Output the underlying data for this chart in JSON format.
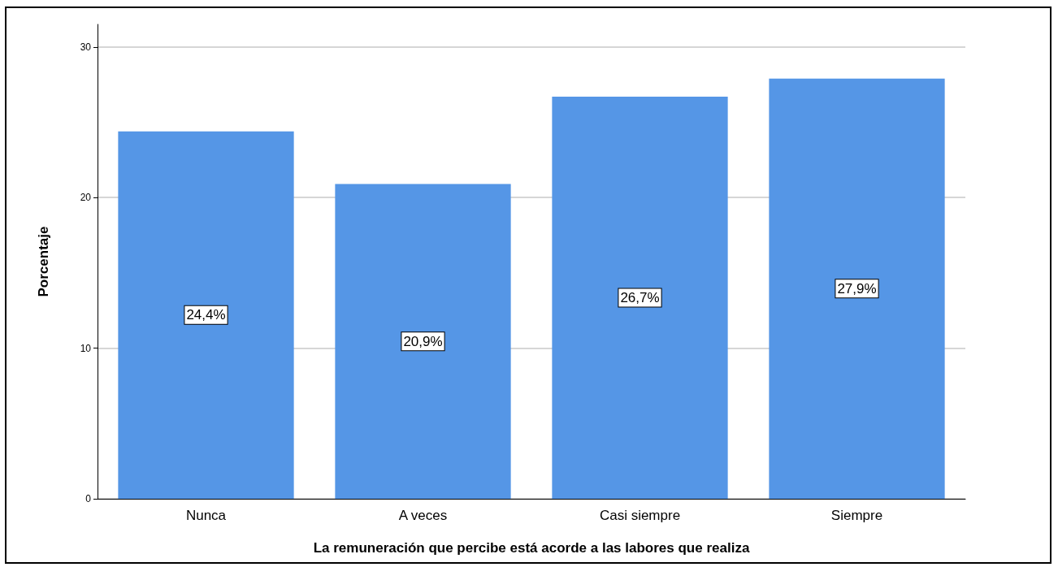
{
  "chart_data": {
    "type": "bar",
    "xlabel": "La remuneración que percibe está acorde a las labores que realiza",
    "ylabel": "Porcentaje",
    "categories": [
      "Nunca",
      "A veces",
      "Casi siempre",
      "Siempre"
    ],
    "values": [
      24.4,
      20.9,
      26.7,
      27.9
    ],
    "value_labels": [
      "24,4%",
      "20,9%",
      "26,7%",
      "27,9%"
    ],
    "color": "#5596e6",
    "ylim": [
      0,
      31.5
    ],
    "yticks": [
      0,
      10,
      20,
      30
    ],
    "grid": "y"
  }
}
